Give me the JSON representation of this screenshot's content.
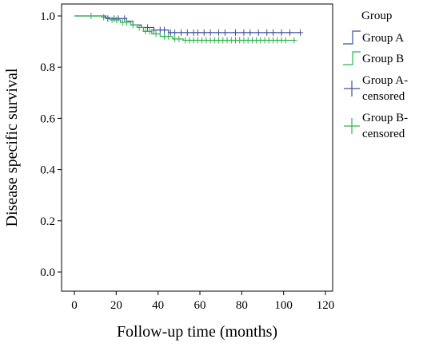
{
  "chart_data": {
    "type": "line",
    "title": "",
    "xlabel": "Follow-up time (months)",
    "ylabel": "Disease specific survival",
    "xlim": [
      0,
      120
    ],
    "ylim": [
      0.0,
      1.0
    ],
    "x_ticks": [
      0,
      20,
      40,
      60,
      80,
      100,
      120
    ],
    "y_ticks": [
      0.0,
      0.2,
      0.4,
      0.6,
      0.8,
      1.0
    ],
    "y_tick_labels": [
      "0.0",
      "0.2",
      "0.4",
      "0.6",
      "0.8",
      "1.0"
    ],
    "grid": false,
    "legend_placement": "right",
    "legend": {
      "title": "Group",
      "entries": [
        {
          "label": "Group A",
          "series": 0,
          "kind": "step"
        },
        {
          "label": "Group B",
          "series": 1,
          "kind": "step"
        },
        {
          "label_lines": [
            "Group A-",
            "censored"
          ],
          "series": 0,
          "kind": "censor"
        },
        {
          "label_lines": [
            "Group B-",
            "censored"
          ],
          "series": 1,
          "kind": "censor"
        }
      ]
    },
    "series": [
      {
        "name": "Group A",
        "color": "#3d4fa0",
        "steps": [
          [
            0,
            1.0
          ],
          [
            15,
            0.99
          ],
          [
            25,
            0.98
          ],
          [
            28,
            0.965
          ],
          [
            32,
            0.955
          ],
          [
            38,
            0.945
          ],
          [
            45,
            0.935
          ],
          [
            108,
            0.935
          ]
        ],
        "censored": [
          [
            16,
            0.99
          ],
          [
            19,
            0.99
          ],
          [
            21,
            0.99
          ],
          [
            24,
            0.99
          ],
          [
            35,
            0.955
          ],
          [
            38,
            0.945
          ],
          [
            41,
            0.945
          ],
          [
            43,
            0.945
          ],
          [
            46,
            0.935
          ],
          [
            48,
            0.935
          ],
          [
            51,
            0.935
          ],
          [
            54,
            0.935
          ],
          [
            57,
            0.935
          ],
          [
            59,
            0.935
          ],
          [
            62,
            0.935
          ],
          [
            65,
            0.935
          ],
          [
            69,
            0.935
          ],
          [
            72,
            0.935
          ],
          [
            77,
            0.935
          ],
          [
            81,
            0.935
          ],
          [
            84,
            0.935
          ],
          [
            88,
            0.935
          ],
          [
            92,
            0.935
          ],
          [
            95,
            0.935
          ],
          [
            99,
            0.935
          ],
          [
            103,
            0.935
          ],
          [
            108,
            0.935
          ]
        ]
      },
      {
        "name": "Group B",
        "color": "#2db34a",
        "steps": [
          [
            0,
            1.0
          ],
          [
            14,
            0.995
          ],
          [
            17,
            0.985
          ],
          [
            22,
            0.975
          ],
          [
            27,
            0.965
          ],
          [
            30,
            0.955
          ],
          [
            33,
            0.94
          ],
          [
            37,
            0.93
          ],
          [
            41,
            0.92
          ],
          [
            47,
            0.91
          ],
          [
            52,
            0.905
          ],
          [
            105,
            0.905
          ]
        ],
        "censored": [
          [
            8,
            1.0
          ],
          [
            14,
            0.995
          ],
          [
            18,
            0.985
          ],
          [
            20,
            0.985
          ],
          [
            23,
            0.975
          ],
          [
            25,
            0.975
          ],
          [
            28,
            0.965
          ],
          [
            31,
            0.955
          ],
          [
            34,
            0.94
          ],
          [
            36,
            0.94
          ],
          [
            39,
            0.93
          ],
          [
            43,
            0.92
          ],
          [
            45,
            0.92
          ],
          [
            48,
            0.91
          ],
          [
            50,
            0.91
          ],
          [
            53,
            0.905
          ],
          [
            55,
            0.905
          ],
          [
            57,
            0.905
          ],
          [
            59,
            0.905
          ],
          [
            61,
            0.905
          ],
          [
            63,
            0.905
          ],
          [
            65,
            0.905
          ],
          [
            67,
            0.905
          ],
          [
            69,
            0.905
          ],
          [
            71,
            0.905
          ],
          [
            73,
            0.905
          ],
          [
            75,
            0.905
          ],
          [
            77,
            0.905
          ],
          [
            79,
            0.905
          ],
          [
            81,
            0.905
          ],
          [
            83,
            0.905
          ],
          [
            85,
            0.905
          ],
          [
            87,
            0.905
          ],
          [
            89,
            0.905
          ],
          [
            91,
            0.905
          ],
          [
            93,
            0.905
          ],
          [
            95,
            0.905
          ],
          [
            97,
            0.905
          ],
          [
            99,
            0.905
          ],
          [
            101,
            0.905
          ],
          [
            105,
            0.905
          ]
        ]
      }
    ]
  }
}
